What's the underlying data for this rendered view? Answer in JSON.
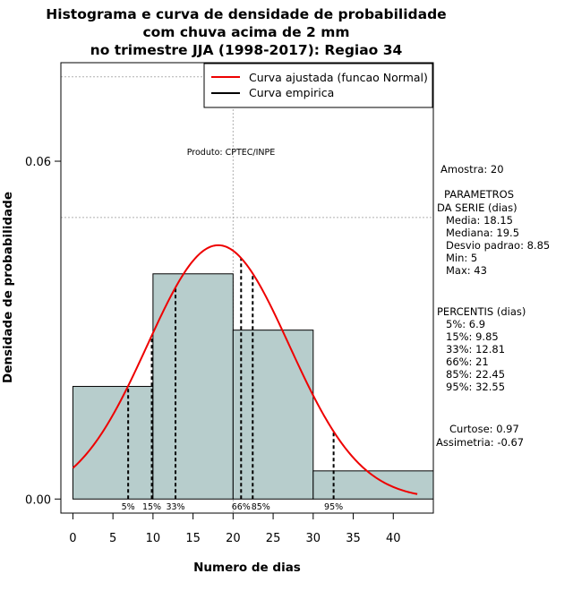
{
  "chart_data": {
    "type": "bar",
    "title_lines": [
      "Histograma e curva de densidade de probabilidade",
      "com chuva acima de 2 mm",
      "no trimestre JJA (1998-2017): Regiao 34"
    ],
    "xlabel": "Numero de dias",
    "ylabel": "Densidade de probabilidade",
    "xlim": [
      -1.5,
      45
    ],
    "ylim": [
      -0.0025,
      0.0775
    ],
    "x_ticks": [
      0,
      5,
      10,
      15,
      20,
      25,
      30,
      35,
      40
    ],
    "y_ticks": [
      0.0,
      0.06
    ],
    "y_tick_labels": [
      "0.00",
      "0.06"
    ],
    "bins": [
      {
        "start": 0,
        "end": 10,
        "density": 0.02
      },
      {
        "start": 10,
        "end": 20,
        "density": 0.04
      },
      {
        "start": 20,
        "end": 30,
        "density": 0.03
      },
      {
        "start": 30,
        "end": 45,
        "density": 0.005
      }
    ],
    "grid_x": [
      20
    ],
    "grid_y": [
      0.05,
      0.075
    ],
    "normal_curve": {
      "mean": 18.15,
      "sd": 8.85,
      "x_from": 0,
      "x_to": 43,
      "color": "#ee0000"
    },
    "bar_color": "#b7cdcc",
    "percentiles": [
      {
        "label": "5%",
        "value": 6.9
      },
      {
        "label": "15%",
        "value": 9.85
      },
      {
        "label": "33%",
        "value": 12.81
      },
      {
        "label": "66%",
        "value": 21
      },
      {
        "label": "85%",
        "value": 22.45
      },
      {
        "label": "95%",
        "value": 32.55
      }
    ],
    "legend": [
      {
        "label": "Curva ajustada (funcao Normal)",
        "color": "#ee0000"
      },
      {
        "label": "Curva empirica",
        "color": "#000000"
      }
    ],
    "legend_position": "top-right",
    "credit": "Produto: CPTEC/INPE",
    "stats": {
      "amostra": "Amostra: 20",
      "param_title_1": "PARAMETROS",
      "param_title_2": "DA SERIE (dias)",
      "media": "Media: 18.15",
      "mediana": "Mediana: 19.5",
      "desvio": "Desvio padrao: 8.85",
      "min": "Min: 5",
      "max": "Max: 43",
      "percentis_title": "PERCENTIS (dias)",
      "p5": "5%: 6.9",
      "p15": "15%: 9.85",
      "p33": "33%: 12.81",
      "p66": "66%: 21",
      "p85": "85%: 22.45",
      "p95": "95%: 32.55",
      "curtose": "Curtose: 0.97",
      "assimetria": "Assimetria: -0.67"
    }
  }
}
